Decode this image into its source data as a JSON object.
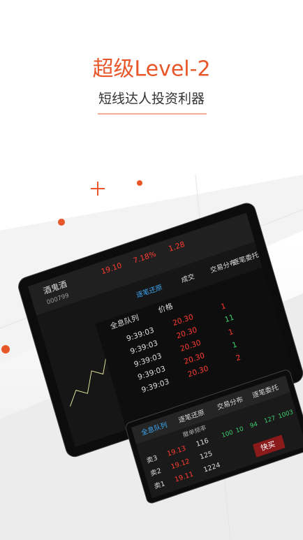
{
  "header": {
    "title": "超级Level-2",
    "subtitle": "短线达人投资利器"
  },
  "back_screen": {
    "stock_name": "酒鬼酒",
    "stock_code": "000799",
    "price": "19.10",
    "change_pct": "7.18%",
    "change": "1.28",
    "tabs": [
      "逐笔还原",
      "成交",
      "交易分布",
      "逐笔委托"
    ],
    "headers": [
      "全息队列",
      "价格"
    ],
    "times": [
      "9:39:03",
      "9:39:03",
      "9:39:03",
      "9:39:03",
      "9:39:03"
    ],
    "prices": [
      "20.30",
      "20.30",
      "20.30",
      "20.30",
      "20.30"
    ],
    "volumes": [
      "1",
      "11",
      "1",
      "1",
      "2"
    ]
  },
  "front_screen": {
    "tabs": [
      "全息队列",
      "逐笔还原",
      "交易分布",
      "逐笔委托"
    ],
    "header": "撤单频率",
    "rows": [
      [
        "卖3",
        "19.13",
        "116"
      ],
      [
        "卖2",
        "19.12",
        "125"
      ],
      [
        "卖1",
        "19.11",
        "1224"
      ]
    ],
    "numbers": [
      "100",
      "10",
      "94",
      "127",
      "1003"
    ],
    "button": "快买"
  }
}
